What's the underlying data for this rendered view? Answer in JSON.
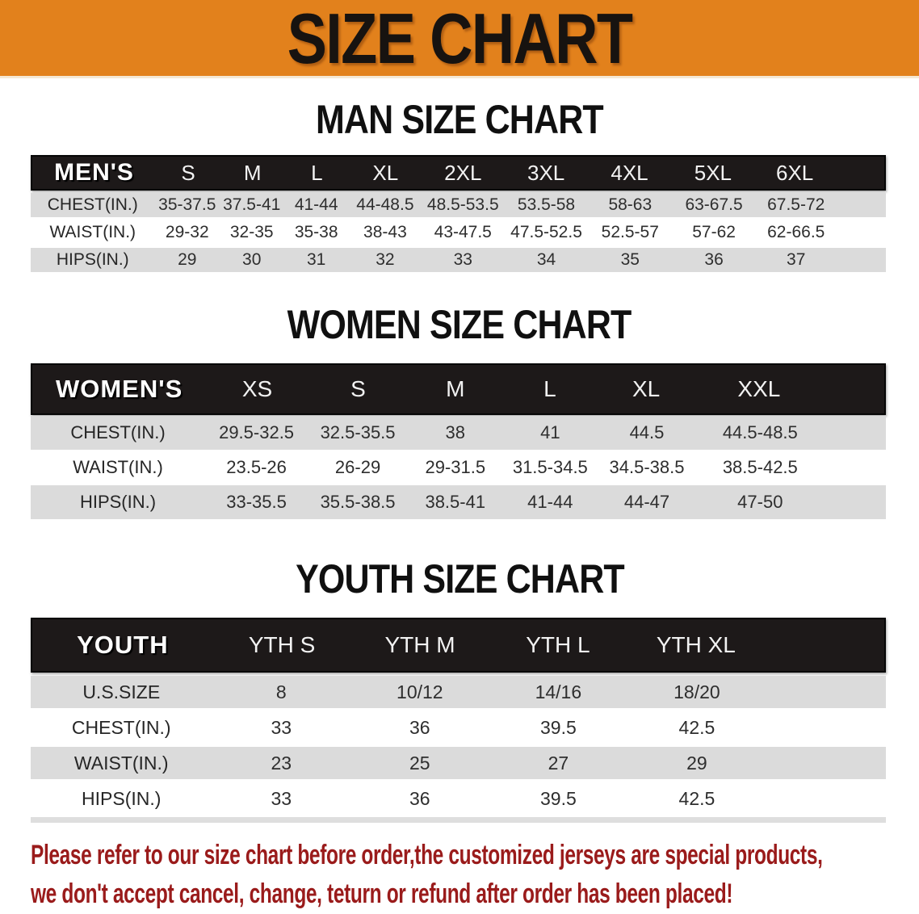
{
  "banner": {
    "title": "SIZE CHART"
  },
  "colors": {
    "banner_orange": "#E2811C",
    "header_bar": "#1D1919",
    "row_gray": "#DBDBDB",
    "disclaimer_red": "#9A1B1B",
    "heading_black": "#171310"
  },
  "sections": [
    {
      "id": "men",
      "heading": "MAN SIZE CHART",
      "table": {
        "label": "MEN'S",
        "columns": [
          "S",
          "M",
          "L",
          "XL",
          "2XL",
          "3XL",
          "4XL",
          "5XL",
          "6XL"
        ],
        "rows": [
          {
            "label": "CHEST(IN.)",
            "values": [
              "35-37.5",
              "37.5-41",
              "41-44",
              "44-48.5",
              "48.5-53.5",
              "53.5-58",
              "58-63",
              "63-67.5",
              "67.5-72"
            ]
          },
          {
            "label": "WAIST(IN.)",
            "values": [
              "29-32",
              "32-35",
              "35-38",
              "38-43",
              "43-47.5",
              "47.5-52.5",
              "52.5-57",
              "57-62",
              "62-66.5"
            ]
          },
          {
            "label": "HIPS(IN.)",
            "values": [
              "29",
              "30",
              "31",
              "32",
              "33",
              "34",
              "35",
              "36",
              "37"
            ]
          }
        ]
      }
    },
    {
      "id": "women",
      "heading": "WOMEN SIZE CHART",
      "table": {
        "label": "WOMEN'S",
        "columns": [
          "XS",
          "S",
          "M",
          "L",
          "XL",
          "XXL"
        ],
        "rows": [
          {
            "label": "CHEST(IN.)",
            "values": [
              "29.5-32.5",
              "32.5-35.5",
              "38",
              "41",
              "44.5",
              "44.5-48.5"
            ]
          },
          {
            "label": "WAIST(IN.)",
            "values": [
              "23.5-26",
              "26-29",
              "29-31.5",
              "31.5-34.5",
              "34.5-38.5",
              "38.5-42.5"
            ]
          },
          {
            "label": "HIPS(IN.)",
            "values": [
              "33-35.5",
              "35.5-38.5",
              "38.5-41",
              "41-44",
              "44-47",
              "47-50"
            ]
          }
        ]
      }
    },
    {
      "id": "youth",
      "heading": "YOUTH SIZE CHART",
      "table": {
        "label": "YOUTH",
        "columns": [
          "YTH S",
          "YTH M",
          "YTH L",
          "YTH XL"
        ],
        "rows": [
          {
            "label": "U.S.SIZE",
            "values": [
              "8",
              "10/12",
              "14/16",
              "18/20"
            ]
          },
          {
            "label": "CHEST(IN.)",
            "values": [
              "33",
              "36",
              "39.5",
              "42.5"
            ]
          },
          {
            "label": "WAIST(IN.)",
            "values": [
              "23",
              "25",
              "27",
              "29"
            ]
          },
          {
            "label": "HIPS(IN.)",
            "values": [
              "33",
              "36",
              "39.5",
              "42.5"
            ]
          }
        ]
      }
    }
  ],
  "disclaimer": {
    "line1": "Please refer to our size chart before order,the customized jerseys are special products,",
    "line2": "we don't accept cancel, change, teturn or refund after order has been placed!"
  }
}
